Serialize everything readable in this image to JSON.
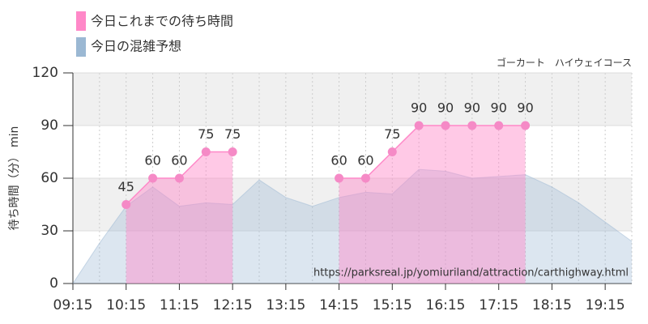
{
  "chart_data": {
    "type": "area",
    "subtitle": "ゴーカート　ハイウェイコース",
    "y_label": "待ち時間（分） min",
    "annotation": "https://parksreal.jp/yomiuriland/attraction/carthighway.html",
    "x": [
      555,
      585,
      615,
      645,
      675,
      705,
      735,
      765,
      795,
      825,
      855,
      885,
      915,
      945,
      975,
      1005,
      1035,
      1065,
      1095,
      1125,
      1155,
      1185
    ],
    "series": [
      {
        "name": "今日の混雑予想",
        "color": "#9bb8d3",
        "values": [
          0,
          23,
          44,
          55,
          44,
          46,
          45,
          59,
          49,
          44,
          49,
          52,
          51,
          65,
          64,
          60,
          61,
          62,
          55,
          46,
          35,
          24
        ]
      },
      {
        "name": "今日これまでの待ち時間",
        "color": "#ff88c8",
        "values": [
          null,
          null,
          45,
          60,
          60,
          75,
          75,
          null,
          null,
          null,
          60,
          60,
          75,
          90,
          90,
          90,
          90,
          90,
          null,
          null,
          null,
          null
        ]
      }
    ],
    "xlim": [
      555,
      1185
    ],
    "xticks": [
      {
        "value": 555,
        "label": "09:15"
      },
      {
        "value": 615,
        "label": "10:15"
      },
      {
        "value": 675,
        "label": "11:15"
      },
      {
        "value": 735,
        "label": "12:15"
      },
      {
        "value": 795,
        "label": "13:15"
      },
      {
        "value": 855,
        "label": "14:15"
      },
      {
        "value": 915,
        "label": "15:15"
      },
      {
        "value": 975,
        "label": "16:15"
      },
      {
        "value": 1035,
        "label": "17:15"
      },
      {
        "value": 1095,
        "label": "18:15"
      },
      {
        "value": 1155,
        "label": "19:15"
      }
    ],
    "ylim": [
      0,
      120
    ],
    "yticks": [
      0,
      30,
      60,
      90,
      120
    ],
    "grid": true
  }
}
